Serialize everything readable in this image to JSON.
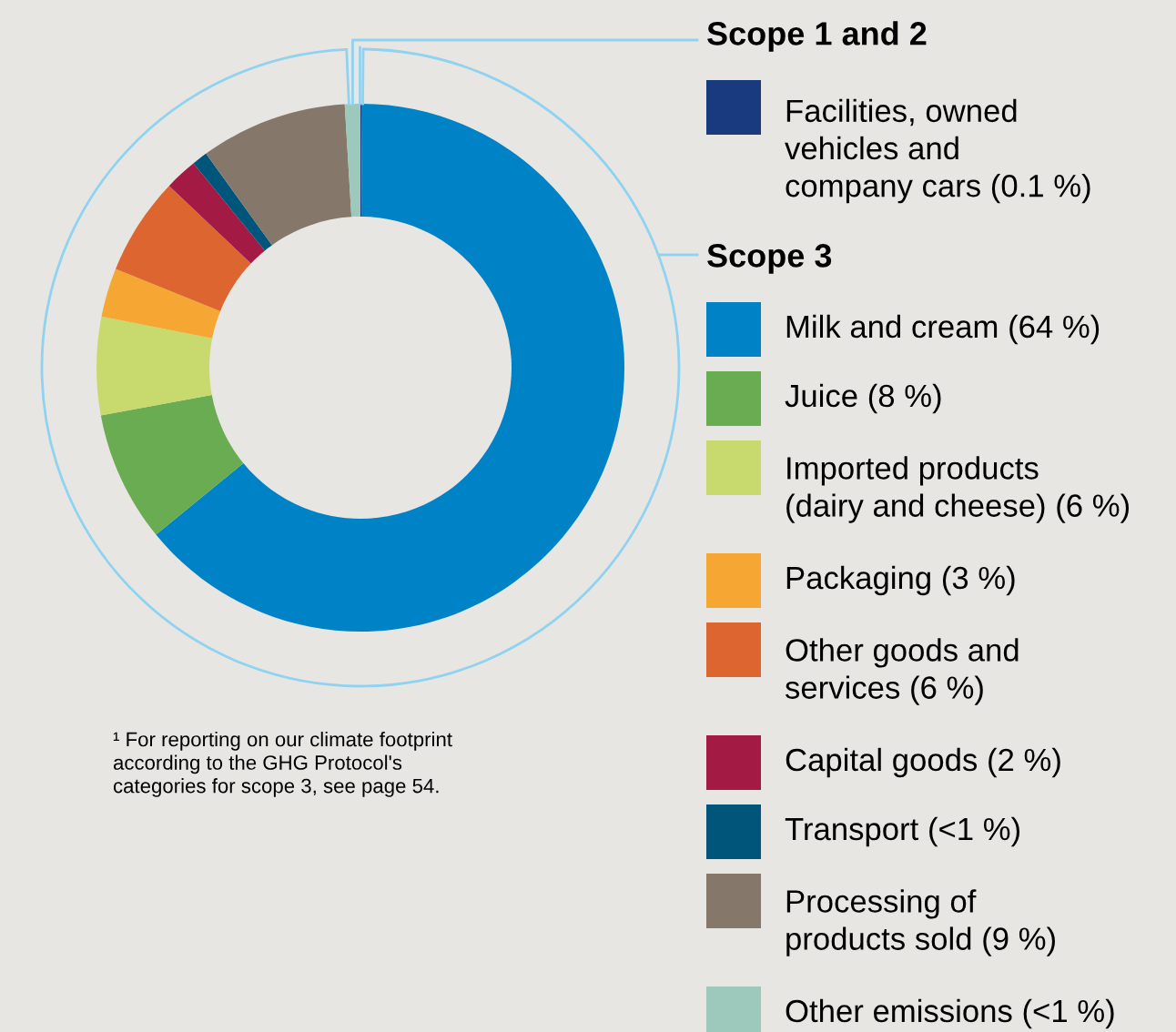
{
  "chart_data": {
    "type": "donut",
    "categories": [
      "Facilities, owned\nvehicles and\ncompany cars (0.1 %)",
      "Milk and cream (64 %)",
      "Juice (8 %)",
      "Imported products\n(dairy and cheese) (6 %)",
      "Packaging (3 %)",
      "Other goods and\nservices (6 %)",
      "Capital goods (2 %)",
      "Transport (<1 %)",
      "Processing of\nproducts sold (9 %)",
      "Other emissions (<1 %)"
    ],
    "values": [
      0.1,
      64,
      8,
      6,
      3,
      6,
      2,
      0.95,
      9,
      0.95
    ],
    "colors": [
      "#1a3a80",
      "#0083c6",
      "#6aac52",
      "#c8d96e",
      "#f6a633",
      "#dd6630",
      "#a31a45",
      "#00557a",
      "#85786a",
      "#9dc9bc"
    ],
    "legend": "right",
    "annotations": [
      "Scope 1 and 2",
      "Scope 3",
      "¹ For reporting on our climate footprint\naccording to the GHG Protocol's\ncategories for scope 3, see page 54."
    ]
  }
}
